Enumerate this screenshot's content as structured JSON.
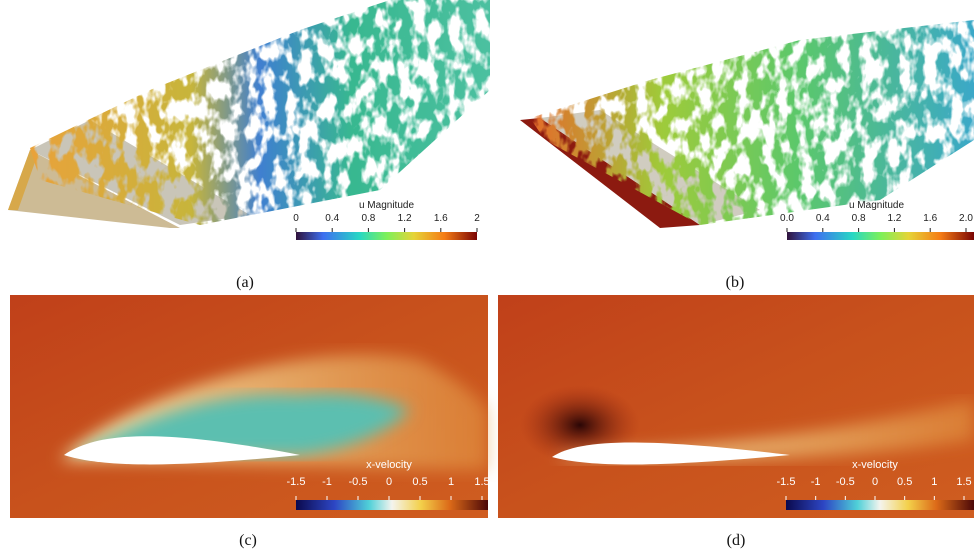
{
  "panels": [
    {
      "caption": "(a)",
      "colorbar": {
        "title": "u Magnitude",
        "ticks": [
          "0",
          "0.4",
          "0.8",
          "1.2",
          "1.6",
          "2"
        ]
      }
    },
    {
      "caption": "(b)",
      "colorbar": {
        "title": "u Magnitude",
        "ticks": [
          "0.0",
          "0.4",
          "0.8",
          "1.2",
          "1.6",
          "2.0"
        ]
      }
    },
    {
      "caption": "(c)",
      "colorbar": {
        "title": "x-velocity",
        "ticks": [
          "-1.5",
          "-1",
          "-0.5",
          "0",
          "0.5",
          "1",
          "1.5"
        ]
      }
    },
    {
      "caption": "(d)",
      "colorbar": {
        "title": "x-velocity",
        "ticks": [
          "-1.5",
          "-1",
          "-0.5",
          "0",
          "0.5",
          "1",
          "1.5"
        ]
      }
    }
  ]
}
